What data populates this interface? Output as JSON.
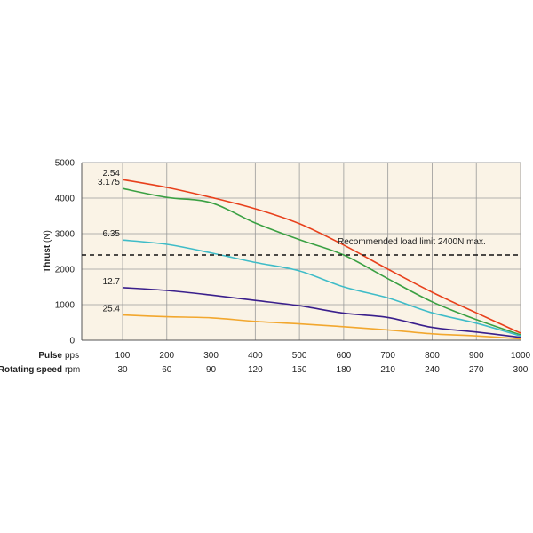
{
  "chart_data": {
    "type": "line",
    "title": "",
    "ylabel": {
      "main": "Thrust",
      "unit": "(N)"
    },
    "ylim": [
      0,
      5000
    ],
    "yticks": [
      0,
      1000,
      2000,
      3000,
      4000,
      5000
    ],
    "xlim": [
      100,
      1000
    ],
    "x": [
      100,
      200,
      300,
      400,
      500,
      600,
      700,
      800,
      900,
      1000
    ],
    "x_rows": [
      {
        "label": "Pulse",
        "unit": "pps",
        "values": [
          "100",
          "200",
          "300",
          "400",
          "500",
          "600",
          "700",
          "800",
          "900",
          "1000"
        ]
      },
      {
        "label": "Rotating speed",
        "unit": "rpm",
        "values": [
          "30",
          "60",
          "90",
          "120",
          "150",
          "180",
          "210",
          "240",
          "270",
          "300"
        ]
      }
    ],
    "series": [
      {
        "name": "2.54",
        "color": "#e8401c",
        "points": [
          [
            100,
            4520
          ],
          [
            200,
            4300
          ],
          [
            300,
            4020
          ],
          [
            400,
            3700
          ],
          [
            500,
            3280
          ],
          [
            600,
            2680
          ],
          [
            700,
            2000
          ],
          [
            800,
            1350
          ],
          [
            900,
            770
          ],
          [
            1000,
            200
          ]
        ]
      },
      {
        "name": "3.175",
        "color": "#3aa043",
        "points": [
          [
            100,
            4270
          ],
          [
            200,
            4020
          ],
          [
            300,
            3870
          ],
          [
            400,
            3300
          ],
          [
            500,
            2830
          ],
          [
            600,
            2400
          ],
          [
            700,
            1730
          ],
          [
            800,
            1080
          ],
          [
            900,
            580
          ],
          [
            1000,
            150
          ]
        ]
      },
      {
        "name": "6.35",
        "color": "#3fbcc8",
        "points": [
          [
            100,
            2820
          ],
          [
            200,
            2700
          ],
          [
            300,
            2460
          ],
          [
            400,
            2190
          ],
          [
            500,
            1950
          ],
          [
            600,
            1500
          ],
          [
            700,
            1190
          ],
          [
            800,
            770
          ],
          [
            900,
            480
          ],
          [
            1000,
            120
          ]
        ]
      },
      {
        "name": "12.7",
        "color": "#3a1f8c",
        "points": [
          [
            100,
            1480
          ],
          [
            200,
            1400
          ],
          [
            300,
            1270
          ],
          [
            400,
            1120
          ],
          [
            500,
            970
          ],
          [
            600,
            760
          ],
          [
            700,
            640
          ],
          [
            800,
            360
          ],
          [
            900,
            230
          ],
          [
            1000,
            80
          ]
        ]
      },
      {
        "name": "25.4",
        "color": "#f2a72e",
        "points": [
          [
            100,
            710
          ],
          [
            200,
            660
          ],
          [
            300,
            630
          ],
          [
            400,
            530
          ],
          [
            500,
            460
          ],
          [
            600,
            380
          ],
          [
            700,
            290
          ],
          [
            800,
            180
          ],
          [
            900,
            120
          ],
          [
            1000,
            40
          ]
        ]
      }
    ],
    "reference_line": {
      "value": 2400,
      "style": "dashed",
      "label": "Recommended load limit 2400N max."
    },
    "grid": true,
    "background": "#faf3e6"
  }
}
